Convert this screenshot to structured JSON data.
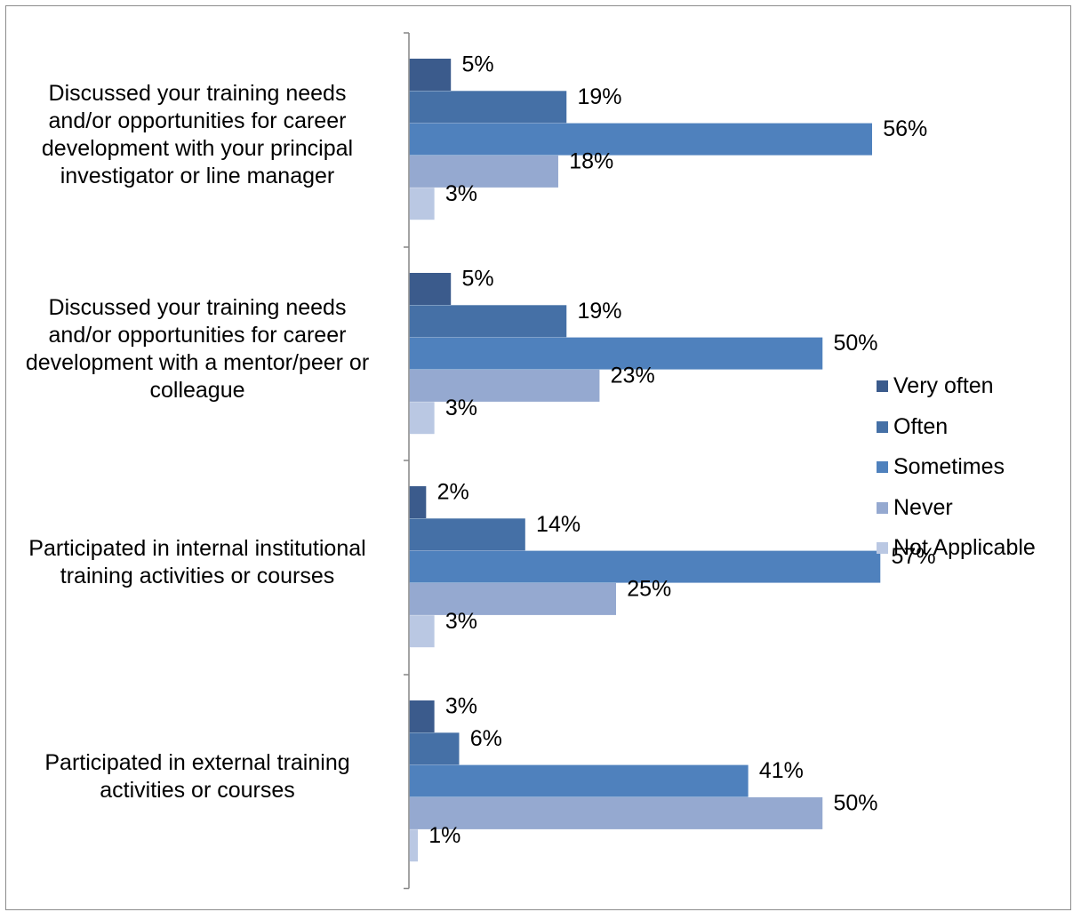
{
  "chart_data": {
    "type": "bar",
    "orientation": "horizontal",
    "categories": [
      "Discussed your training needs and/or opportunities for career development with your principal investigator or line manager",
      "Discussed your training needs and/or opportunities for career development with a mentor/peer or colleague",
      "Participated in internal institutional training activities or courses",
      "Participated in external training activities or courses"
    ],
    "category_lines": [
      [
        "Discussed your training needs",
        "and/or opportunities for career",
        "development with your principal",
        "investigator or line manager"
      ],
      [
        "Discussed your training needs",
        "and/or opportunities for career",
        "development with a mentor/peer or",
        "colleague"
      ],
      [
        "Participated in internal institutional",
        "training activities or courses"
      ],
      [
        "Participated in external training",
        "activities or courses"
      ]
    ],
    "series": [
      {
        "name": "Very often",
        "color": "#3b5b8c",
        "values": [
          5,
          5,
          2,
          3
        ],
        "labels": [
          "5%",
          "5%",
          "2%",
          "3%"
        ]
      },
      {
        "name": "Often",
        "color": "#4570a6",
        "values": [
          19,
          19,
          14,
          6
        ],
        "labels": [
          "19%",
          "19%",
          "14%",
          "6%"
        ]
      },
      {
        "name": "Sometimes",
        "color": "#4f81bd",
        "values": [
          56,
          50,
          57,
          41
        ],
        "labels": [
          "56%",
          "50%",
          "57%",
          "41%"
        ]
      },
      {
        "name": "Never",
        "color": "#95a9d0",
        "values": [
          18,
          23,
          25,
          50
        ],
        "labels": [
          "18%",
          "23%",
          "25%",
          "50%"
        ]
      },
      {
        "name": "Not Applicable",
        "color": "#bac8e3",
        "values": [
          3,
          3,
          3,
          1
        ],
        "labels": [
          "3%",
          "3%",
          "3%",
          "1%"
        ]
      }
    ],
    "xlim": [
      0,
      60
    ],
    "grid": false,
    "legend_position": "right"
  }
}
